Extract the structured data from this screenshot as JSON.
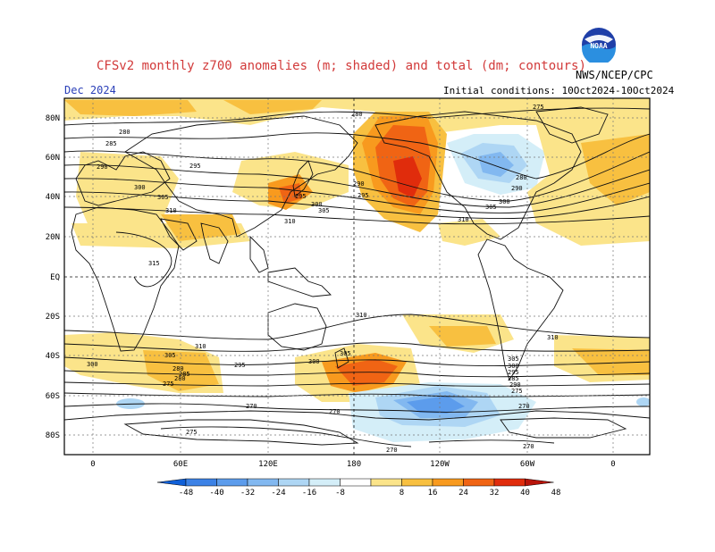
{
  "header": {
    "title": "CFSv2 monthly z700 anomalies (m; shaded) and total (dm; contours)",
    "period": "Dec 2024",
    "initial_conditions": "Initial conditions: 10Oct2024-10Oct2024",
    "agency": "NWS/NCEP/CPC",
    "logo_text": "NOAA"
  },
  "map": {
    "lat_labels": [
      "80N",
      "60N",
      "40N",
      "20N",
      "EQ",
      "20S",
      "40S",
      "60S",
      "80S"
    ],
    "lon_labels": [
      "0",
      "60E",
      "120E",
      "180",
      "120W",
      "60W",
      "0"
    ],
    "contour_labels": [
      "275",
      "280",
      "285",
      "290",
      "295",
      "300",
      "305",
      "310",
      "315",
      "270"
    ]
  },
  "colorbar": {
    "labels": [
      "-48",
      "-40",
      "-32",
      "-24",
      "-16",
      "-8",
      "8",
      "16",
      "24",
      "32",
      "40",
      "48"
    ],
    "colors": [
      "#1060d8",
      "#3c82e6",
      "#5c9cec",
      "#82b8f0",
      "#aed6f4",
      "#d4eef8",
      "#ffffff",
      "#fbe48a",
      "#f8c040",
      "#f89a1e",
      "#f06414",
      "#e02c0c",
      "#b8140a"
    ]
  }
}
